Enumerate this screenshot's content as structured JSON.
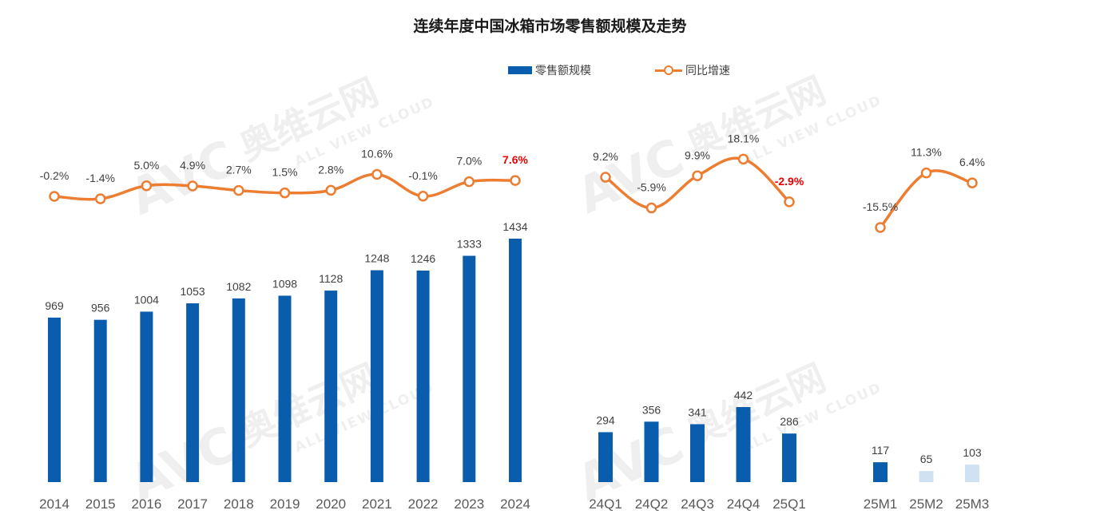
{
  "title": "连续年度中国冰箱市场零售额规模及走势",
  "legend": {
    "bar_label": "零售额规模",
    "line_label": "同比增速"
  },
  "colors": {
    "bar": "#0a5cad",
    "line": "#ec7d31",
    "highlight": "#ee0000",
    "bar_faint": "#d0e1f2",
    "text": "#404040"
  },
  "chart_data": [
    {
      "type": "bar+line",
      "group": "annual",
      "categories": [
        "2014",
        "2015",
        "2016",
        "2017",
        "2018",
        "2019",
        "2020",
        "2021",
        "2022",
        "2023",
        "2024"
      ],
      "series": [
        {
          "name": "零售额规模",
          "type": "bar",
          "values": [
            969,
            956,
            1004,
            1053,
            1082,
            1098,
            1128,
            1248,
            1246,
            1333,
            1434
          ],
          "labels": [
            "969",
            "956",
            "1004",
            "1053",
            "1082",
            "1098",
            "1128",
            "1248",
            "1246",
            "1333",
            "1434"
          ]
        },
        {
          "name": "同比增速",
          "type": "line",
          "unit": "%",
          "values": [
            -0.2,
            -1.4,
            5.0,
            4.9,
            2.7,
            1.5,
            2.8,
            10.6,
            -0.1,
            7.0,
            7.6
          ],
          "labels": [
            "-0.2%",
            "-1.4%",
            "5.0%",
            "4.9%",
            "2.7%",
            "1.5%",
            "2.8%",
            "10.6%",
            "-0.1%",
            "7.0%",
            "7.6%"
          ],
          "highlight": [
            false,
            false,
            false,
            false,
            false,
            false,
            false,
            false,
            false,
            false,
            true
          ]
        }
      ]
    },
    {
      "type": "bar+line",
      "group": "quarterly",
      "categories": [
        "24Q1",
        "24Q2",
        "24Q3",
        "24Q4",
        "25Q1"
      ],
      "series": [
        {
          "name": "零售额规模",
          "type": "bar",
          "values": [
            294,
            356,
            341,
            442,
            286
          ],
          "labels": [
            "294",
            "356",
            "341",
            "442",
            "286"
          ]
        },
        {
          "name": "同比增速",
          "type": "line",
          "unit": "%",
          "values": [
            9.2,
            -5.9,
            9.9,
            18.1,
            -2.9
          ],
          "labels": [
            "9.2%",
            "-5.9%",
            "9.9%",
            "18.1%",
            "-2.9%"
          ],
          "highlight": [
            false,
            false,
            false,
            false,
            true
          ]
        }
      ]
    },
    {
      "type": "bar+line",
      "group": "monthly",
      "categories": [
        "25M1",
        "25M2",
        "25M3"
      ],
      "series": [
        {
          "name": "零售额规模",
          "type": "bar",
          "values": [
            117,
            65,
            103
          ],
          "labels": [
            "117",
            "65",
            "103"
          ]
        },
        {
          "name": "同比增速",
          "type": "line",
          "unit": "%",
          "values": [
            -15.5,
            11.3,
            6.4
          ],
          "labels": [
            "-15.5%",
            "11.3%",
            "6.4%"
          ],
          "highlight": [
            false,
            false,
            false
          ]
        }
      ]
    }
  ],
  "watermark": {
    "logo": "AVC",
    "cn": "奥维云网",
    "en": "ALL VIEW CLOUD"
  }
}
